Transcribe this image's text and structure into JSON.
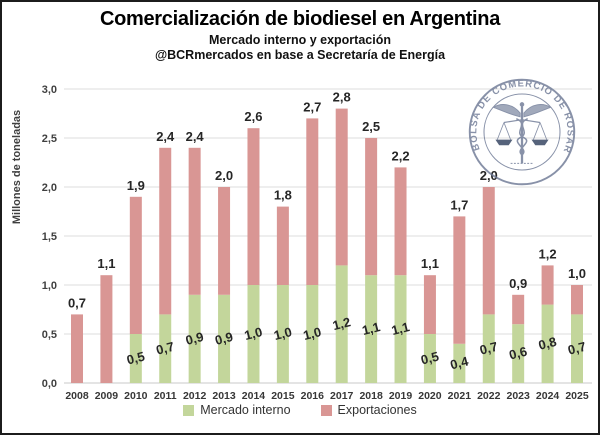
{
  "header": {
    "title": "Comercialización de biodiesel en Argentina",
    "subtitle": "Mercado interno y exportación",
    "attribution": "@BCRmercados en base a Secretaría de Energía"
  },
  "logo": {
    "text": "BOLSA DE COMERCIO DE ROSARIO"
  },
  "colors": {
    "mercado_interno": "#c3d69b",
    "exportaciones": "#d99694",
    "gridline": "#dcdcdc",
    "data_label": "#262626",
    "logo_stroke": "#6e7a96",
    "logo_dark": "#31415f"
  },
  "chart_data": {
    "type": "bar",
    "stacked": true,
    "title": "Comercialización de biodiesel en Argentina",
    "subtitle": "Mercado interno y exportación",
    "source": "@BCRmercados en base a Secretaría de Energía",
    "xlabel": "",
    "ylabel": "Millones de toneladas",
    "ylim": [
      0,
      3.0
    ],
    "ytick_step": 0.5,
    "ytick_labels": [
      "0,0",
      "0,5",
      "1,0",
      "1,5",
      "2,0",
      "2,5",
      "3,0"
    ],
    "grid": true,
    "legend_position": "bottom",
    "categories": [
      "2008",
      "2009",
      "2010",
      "2011",
      "2012",
      "2013",
      "2014",
      "2015",
      "2016",
      "2017",
      "2018",
      "2019",
      "2020",
      "2021",
      "2022",
      "2023",
      "2024",
      "2025"
    ],
    "series": [
      {
        "name": "Mercado interno",
        "color": "#c3d69b",
        "values": [
          0,
          0,
          0.5,
          0.7,
          0.9,
          0.9,
          1.0,
          1.0,
          1.0,
          1.2,
          1.1,
          1.1,
          0.5,
          0.4,
          0.7,
          0.6,
          0.8,
          0.7
        ]
      },
      {
        "name": "Exportaciones",
        "color": "#d99694",
        "values": [
          0.7,
          1.1,
          1.4,
          1.7,
          1.5,
          1.1,
          1.6,
          0.8,
          1.7,
          1.6,
          1.4,
          1.1,
          0.6,
          1.3,
          1.3,
          0.3,
          0.4,
          0.3
        ]
      }
    ],
    "total_labels": [
      "0,7",
      "1,1",
      "1,9",
      "2,4",
      "2,4",
      "2,0",
      "2,6",
      "1,8",
      "2,7",
      "2,8",
      "2,5",
      "2,2",
      "1,1",
      "1,7",
      "2,0",
      "0,9",
      "1,2",
      "1,0"
    ],
    "interno_labels": [
      "",
      "",
      "0,5",
      "0,7",
      "0,9",
      "0,9",
      "1,0",
      "1,0",
      "1,0",
      "1,2",
      "1,1",
      "1,1",
      "0,5",
      "0,4",
      "0,7",
      "0,6",
      "0,8",
      "0,7"
    ]
  }
}
